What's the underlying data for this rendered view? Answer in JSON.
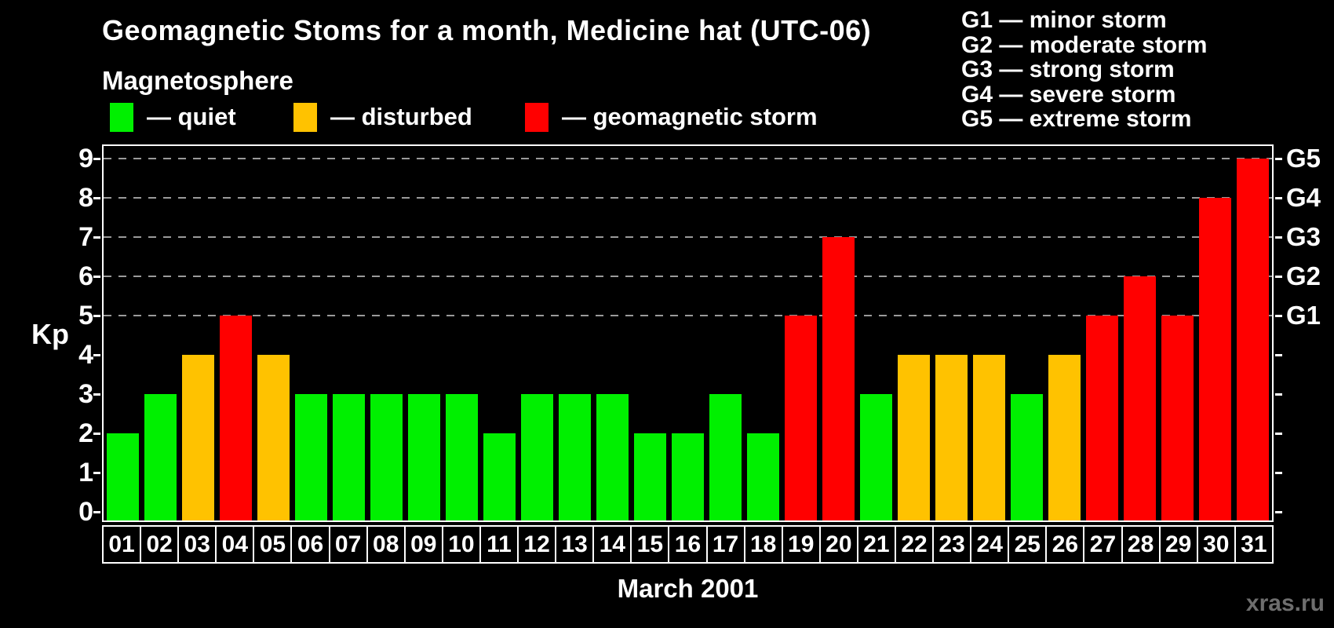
{
  "title": "Geomagnetic Stoms for a month, Medicine hat (UTC-06)",
  "subtitle": "Magnetosphere",
  "legend": {
    "items": [
      {
        "key": "quiet",
        "label": "— quiet",
        "color": "#00f000"
      },
      {
        "key": "disturbed",
        "label": "— disturbed",
        "color": "#ffc200"
      },
      {
        "key": "storm",
        "label": "— geomagnetic storm",
        "color": "#ff0000"
      }
    ]
  },
  "storm_scale_legend": {
    "items": [
      "G1 — minor storm",
      "G2 — moderate storm",
      "G3 — strong storm",
      "G4 — severe storm",
      "G5 — extreme storm"
    ]
  },
  "watermark": "xras.ru",
  "colors": {
    "quiet": "#00f000",
    "disturbed": "#ffc200",
    "storm": "#ff0000",
    "grid": "#9a9a9a",
    "frame": "#ffffff",
    "background": "#000000",
    "text": "#ffffff",
    "watermark": "#6e6e6e"
  },
  "chart_data": {
    "type": "bar",
    "title": "Geomagnetic Stoms for a month, Medicine hat (UTC-06)",
    "xlabel": "March 2001",
    "ylabel": "Kp",
    "ylim": [
      0,
      9
    ],
    "grid": "dashed horizontal at Kp 5-9 only",
    "legend_position": "top",
    "y_ticks": [
      0,
      1,
      2,
      3,
      4,
      5,
      6,
      7,
      8,
      9
    ],
    "gridlines_kp": [
      5,
      6,
      7,
      8,
      9
    ],
    "right_axis_labels": [
      {
        "text": "G1",
        "kp": 5
      },
      {
        "text": "G2",
        "kp": 6
      },
      {
        "text": "G3",
        "kp": 7
      },
      {
        "text": "G4",
        "kp": 8
      },
      {
        "text": "G5",
        "kp": 9
      }
    ],
    "categories": [
      "01",
      "02",
      "03",
      "04",
      "05",
      "06",
      "07",
      "08",
      "09",
      "10",
      "11",
      "12",
      "13",
      "14",
      "15",
      "16",
      "17",
      "18",
      "19",
      "20",
      "21",
      "22",
      "23",
      "24",
      "25",
      "26",
      "27",
      "28",
      "29",
      "30",
      "31"
    ],
    "values": [
      2,
      3,
      4,
      5,
      4,
      3,
      3,
      3,
      3,
      3,
      2,
      3,
      3,
      3,
      2,
      2,
      3,
      2,
      5,
      7,
      3,
      4,
      4,
      4,
      3,
      4,
      5,
      6,
      5,
      8,
      9
    ],
    "status": [
      "quiet",
      "quiet",
      "disturbed",
      "storm",
      "disturbed",
      "quiet",
      "quiet",
      "quiet",
      "quiet",
      "quiet",
      "quiet",
      "quiet",
      "quiet",
      "quiet",
      "quiet",
      "quiet",
      "quiet",
      "quiet",
      "storm",
      "storm",
      "quiet",
      "disturbed",
      "disturbed",
      "disturbed",
      "quiet",
      "disturbed",
      "storm",
      "storm",
      "storm",
      "storm",
      "storm"
    ]
  }
}
